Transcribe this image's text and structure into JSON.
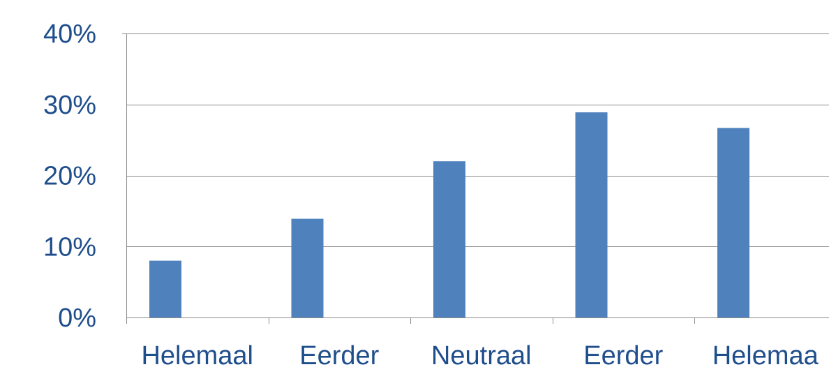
{
  "chart_data": {
    "type": "bar",
    "categories": [
      "Helemaal",
      "Eerder",
      "Neutraal",
      "Eerder",
      "Helemaa"
    ],
    "values": [
      8.0,
      13.9,
      22.0,
      28.9,
      26.7
    ],
    "value_unit": "%",
    "title": "",
    "xlabel": "",
    "ylabel": "",
    "ylim": [
      0,
      40
    ],
    "yticks": [
      0,
      10,
      20,
      30,
      40
    ],
    "ytick_labels": [
      "0%",
      "10%",
      "20%",
      "30%",
      "40%"
    ],
    "grid": true,
    "legend": "none",
    "colors": {
      "bar": "#4f81bd",
      "text": "#1f4e8c",
      "grid": "#8c8c8c"
    }
  }
}
